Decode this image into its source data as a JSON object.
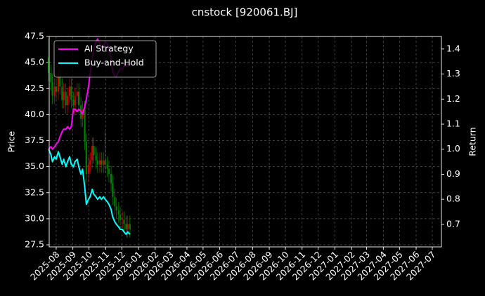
{
  "chart_data": {
    "type": "candlestick",
    "title": "cnstock [920061.BJ]",
    "ylabel": "Price",
    "y2label": "Return",
    "x": [
      "2025-07-18",
      "2025-07-22",
      "2025-07-25",
      "2025-07-29",
      "2025-08-01",
      "2025-08-05",
      "2025-08-08",
      "2025-08-12",
      "2025-08-15",
      "2025-08-19",
      "2025-08-22",
      "2025-08-26",
      "2025-08-29",
      "2025-09-02",
      "2025-09-05",
      "2025-09-09",
      "2025-09-12",
      "2025-09-16",
      "2025-09-19",
      "2025-09-23",
      "2025-09-26",
      "2025-09-30",
      "2025-10-03",
      "2025-10-07",
      "2025-10-10",
      "2025-10-14",
      "2025-10-17",
      "2025-10-21",
      "2025-10-24",
      "2025-10-28",
      "2025-10-31",
      "2025-11-04",
      "2025-11-07",
      "2025-11-11",
      "2025-11-14",
      "2025-11-18",
      "2025-11-21",
      "2025-11-25",
      "2025-11-28",
      "2025-12-02",
      "2025-12-05",
      "2025-12-09",
      "2025-12-12",
      "2025-12-16"
    ],
    "open": [
      45.5,
      44.0,
      43.1,
      41.8,
      42.7,
      42.2,
      43.6,
      42.7,
      41.4,
      42.2,
      40.9,
      41.8,
      42.7,
      41.4,
      40.9,
      41.8,
      42.2,
      40.9,
      39.6,
      40.5,
      37.4,
      34.3,
      35.2,
      35.6,
      37.0,
      36.1,
      35.6,
      35.2,
      35.6,
      35.2,
      35.6,
      35.2,
      34.8,
      34.3,
      33.4,
      32.1,
      31.2,
      30.8,
      30.4,
      29.9,
      29.9,
      29.5,
      29.0,
      29.5
    ],
    "high": [
      47.3,
      44.8,
      43.9,
      43.5,
      43.5,
      44.4,
      44.4,
      43.5,
      43.0,
      43.0,
      42.6,
      43.5,
      43.5,
      42.2,
      42.6,
      43.0,
      43.0,
      41.7,
      41.3,
      41.3,
      38.2,
      36.0,
      36.4,
      37.8,
      37.8,
      36.9,
      36.4,
      36.4,
      36.4,
      36.4,
      38.4,
      36.0,
      35.6,
      35.1,
      34.2,
      32.9,
      32.0,
      31.6,
      31.2,
      30.7,
      30.7,
      30.3,
      30.3,
      30.3
    ],
    "low": [
      43.2,
      42.3,
      41.0,
      41.0,
      41.4,
      41.4,
      41.9,
      40.6,
      40.6,
      40.1,
      40.1,
      41.0,
      40.6,
      40.1,
      40.1,
      41.0,
      40.1,
      38.8,
      38.8,
      36.6,
      33.5,
      33.5,
      34.4,
      34.8,
      35.3,
      34.8,
      34.4,
      34.4,
      34.4,
      34.4,
      34.4,
      34.0,
      33.5,
      32.6,
      31.3,
      30.4,
      30.0,
      29.6,
      29.1,
      29.1,
      28.7,
      28.2,
      28.2,
      28.2
    ],
    "close": [
      44.0,
      43.1,
      41.8,
      42.7,
      42.2,
      43.6,
      42.7,
      41.4,
      42.2,
      40.9,
      41.8,
      42.7,
      41.4,
      40.9,
      41.8,
      42.2,
      40.9,
      39.6,
      40.5,
      37.4,
      34.3,
      35.2,
      35.6,
      37.0,
      36.1,
      35.6,
      35.2,
      35.6,
      35.2,
      35.6,
      35.2,
      34.8,
      34.3,
      33.4,
      32.1,
      31.2,
      30.8,
      30.4,
      29.9,
      29.9,
      29.5,
      29.0,
      29.5,
      29.0
    ],
    "up_color": "#d40000",
    "down_color": "#008000",
    "series": [
      {
        "name": "AI Strategy",
        "color": "#ff00ff",
        "axis": "y2",
        "values": [
          1.0,
          1.01,
          1.0,
          1.01,
          1.02,
          1.03,
          1.05,
          1.07,
          1.08,
          1.08,
          1.09,
          1.08,
          1.09,
          1.16,
          1.16,
          1.15,
          1.16,
          1.15,
          1.14,
          1.17,
          1.2,
          1.25,
          1.3,
          1.36,
          1.4,
          1.43,
          1.44,
          1.42,
          1.4,
          1.41,
          1.43,
          1.42,
          1.4,
          1.36,
          1.31,
          1.29,
          1.29,
          1.31,
          1.32,
          1.32,
          1.33,
          1.33,
          1.34,
          1.34
        ]
      },
      {
        "name": "Buy-and-Hold",
        "color": "#00ffff",
        "axis": "y2",
        "values": [
          1.0,
          0.98,
          0.95,
          0.97,
          0.96,
          0.99,
          0.97,
          0.94,
          0.96,
          0.93,
          0.95,
          0.97,
          0.94,
          0.93,
          0.95,
          0.96,
          0.93,
          0.9,
          0.92,
          0.85,
          0.78,
          0.8,
          0.81,
          0.84,
          0.82,
          0.81,
          0.8,
          0.81,
          0.8,
          0.81,
          0.8,
          0.79,
          0.78,
          0.76,
          0.73,
          0.71,
          0.7,
          0.69,
          0.68,
          0.68,
          0.67,
          0.66,
          0.67,
          0.66
        ]
      }
    ],
    "xlim": [
      "2025-07-19",
      "2027-07-18"
    ],
    "xticks": [
      "2025-08",
      "2025-09",
      "2025-10",
      "2025-11",
      "2025-12",
      "2026-01",
      "2026-02",
      "2026-03",
      "2026-04",
      "2026-05",
      "2026-06",
      "2026-07",
      "2026-08",
      "2026-09",
      "2026-10",
      "2026-11",
      "2026-12",
      "2027-01",
      "2027-02",
      "2027-03",
      "2027-04",
      "2027-05",
      "2027-06",
      "2027-07"
    ],
    "ylim": [
      27.3,
      47.5
    ],
    "yticks": [
      27.5,
      {
        "value": 30,
        "label": "30.0"
      },
      32.5,
      {
        "value": 35,
        "label": "35.0"
      },
      37.5,
      {
        "value": 40,
        "label": "40.0"
      },
      42.5,
      {
        "value": 45,
        "label": "45.0"
      },
      47.5
    ],
    "y2lim": [
      0.61,
      1.45
    ],
    "y2ticks": [
      0.7,
      0.8,
      0.9,
      {
        "value": 1,
        "label": "1.0"
      },
      1.1,
      1.2,
      1.3,
      1.4
    ],
    "grid": true,
    "legend": "upper left"
  }
}
